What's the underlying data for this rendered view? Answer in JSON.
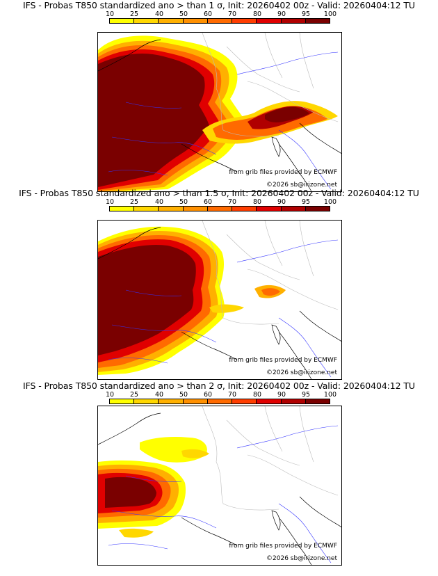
{
  "legend": {
    "ticks": [
      "10",
      "25",
      "40",
      "50",
      "60",
      "70",
      "80",
      "90",
      "95",
      "100"
    ],
    "colors": [
      "#ffff00",
      "#ffd700",
      "#ffb000",
      "#ff9000",
      "#ff6a00",
      "#ff3d00",
      "#e00000",
      "#b00000",
      "#7a0000"
    ]
  },
  "panels": [
    {
      "title": "IFS - Probas T850  standardized ano > than 1 σ, Init: 20260402 00z - Valid: 20260404:12 TU",
      "source_credit": "from grib files provided by ECMWF",
      "copyright": "©2026 sb@irizone.net"
    },
    {
      "title": "IFS - Probas T850  standardized ano > than 1.5 σ, Init: 20260402 00z - Valid: 20260404:12 TU",
      "source_credit": "from grib files provided by ECMWF",
      "copyright": "©2026 sb@irizone.net"
    },
    {
      "title": "IFS - Probas T850  standardized ano > than 2 σ, Init: 20260402 00z - Valid: 20260404:12 TU",
      "source_credit": "from grib files provided by ECMWF",
      "copyright": "©2026 sb@irizone.net"
    }
  ]
}
